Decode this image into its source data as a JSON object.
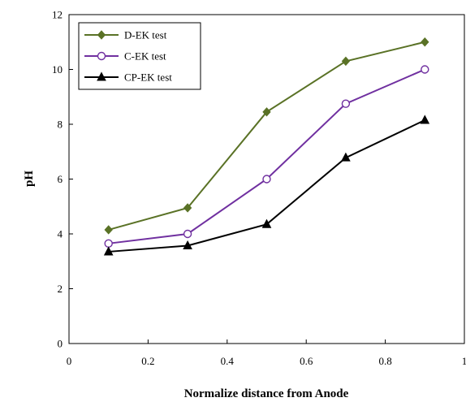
{
  "chart_data": {
    "type": "line",
    "title": "",
    "xlabel": "Normalize distance from Anode",
    "ylabel": "pH",
    "xlim": [
      0,
      1
    ],
    "ylim": [
      0,
      12
    ],
    "x_ticks": [
      "0",
      "0.2",
      "0.4",
      "0.6",
      "0.8",
      "1"
    ],
    "y_ticks": [
      "0",
      "2",
      "4",
      "6",
      "8",
      "10",
      "12"
    ],
    "grid": false,
    "legend_position": "top-left",
    "x": [
      0.1,
      0.3,
      0.5,
      0.7,
      0.9
    ],
    "series": [
      {
        "name": "D-EK test",
        "values": [
          4.15,
          4.95,
          8.45,
          10.3,
          11.0
        ],
        "color": "#5a7226",
        "marker": "diamond-filled"
      },
      {
        "name": "C-EK test",
        "values": [
          3.65,
          4.0,
          6.0,
          8.75,
          10.0
        ],
        "color": "#7030a0",
        "marker": "circle-open"
      },
      {
        "name": "CP-EK test",
        "values": [
          3.35,
          3.57,
          4.35,
          6.78,
          8.15
        ],
        "color": "#000000",
        "marker": "triangle-filled"
      }
    ]
  }
}
